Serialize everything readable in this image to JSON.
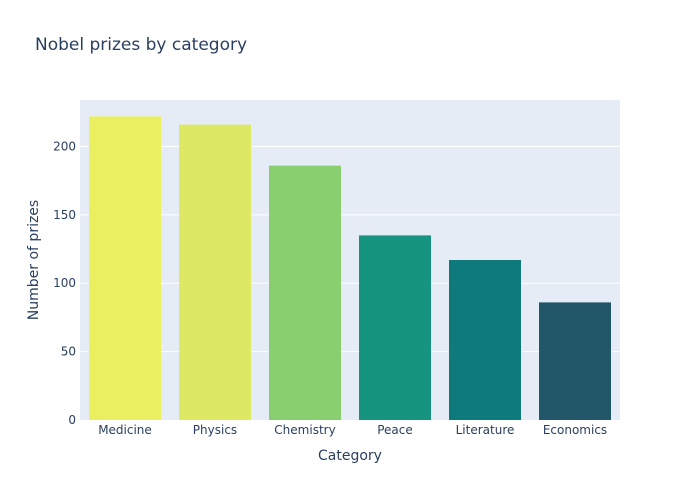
{
  "chart_data": {
    "type": "bar",
    "title": "Nobel prizes by category",
    "xlabel": "Category",
    "ylabel": "Number of prizes",
    "categories": [
      "Medicine",
      "Physics",
      "Chemistry",
      "Peace",
      "Literature",
      "Economics"
    ],
    "values": [
      222,
      216,
      186,
      135,
      117,
      86
    ],
    "colors": [
      "#eaef5f",
      "#dde963",
      "#89ce6f",
      "#16947f",
      "#0f7a7b",
      "#22576a"
    ],
    "ylim": [
      0,
      234
    ],
    "yticks": [
      0,
      50,
      100,
      150,
      200
    ],
    "grid": true,
    "plot_background": "#e5ecf6"
  }
}
